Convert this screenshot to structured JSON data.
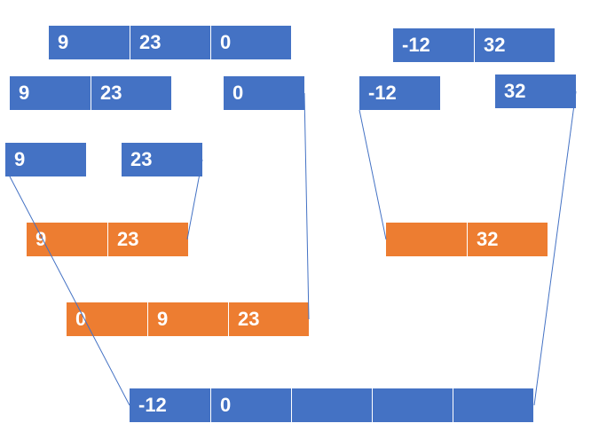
{
  "colors": {
    "blue": "#4472c4",
    "orange": "#ed7d31",
    "connector": "#4472c4"
  },
  "diagram": {
    "array_top_left": [
      "9",
      "23",
      "0"
    ],
    "array_top_right": [
      "-12",
      "32"
    ],
    "split_left": [
      "9",
      "23"
    ],
    "split_mid": [
      "0"
    ],
    "split_right_a": [
      "-12"
    ],
    "split_right_b": [
      "32"
    ],
    "leaf_a": [
      "9"
    ],
    "leaf_b": [
      "23"
    ],
    "merged_9_23": [
      "9",
      "23"
    ],
    "merged_right": [
      "",
      "32"
    ],
    "merged_0_9_23": [
      "0",
      "9",
      "23"
    ],
    "result": [
      "-12",
      "0",
      "",
      "",
      ""
    ]
  }
}
